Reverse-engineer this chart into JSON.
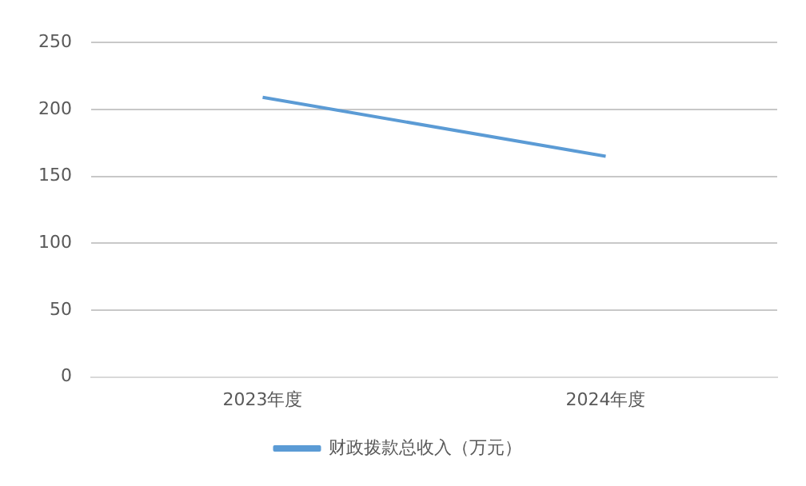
{
  "chart_data": {
    "type": "line",
    "categories": [
      "2023年度",
      "2024年度"
    ],
    "series": [
      {
        "name": "财政拨款总收入（万元）",
        "color": "#5b9bd5",
        "values": [
          209,
          165
        ]
      }
    ],
    "ylim": [
      0,
      250
    ],
    "yticks": [
      0,
      50,
      100,
      150,
      200,
      250
    ],
    "grid": "y",
    "legend": "bottom",
    "marker": "none"
  }
}
